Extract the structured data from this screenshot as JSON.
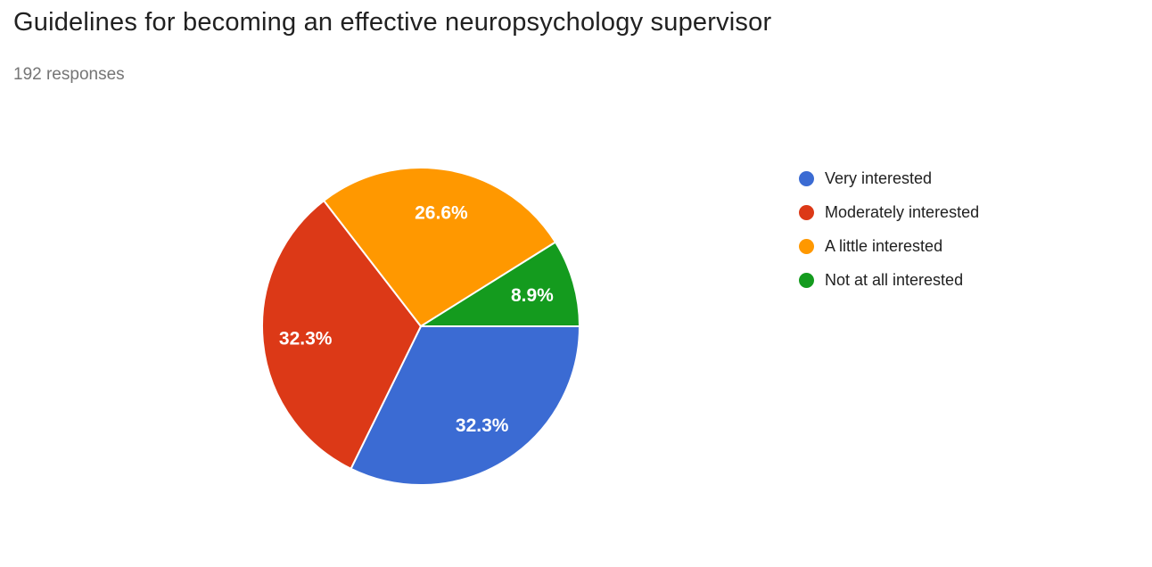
{
  "header": {
    "title": "Guidelines for becoming an effective neuropsychology supervisor",
    "responses_count": "192 responses"
  },
  "chart_data": {
    "type": "pie",
    "title": "Guidelines for becoming an effective neuropsychology supervisor",
    "subtitle": "192 responses",
    "total_responses": 192,
    "legend_position": "right",
    "start_angle_deg": 0,
    "direction": "clockwise",
    "label_color": "#ffffff",
    "slice_border_color": "#ffffff",
    "slices": [
      {
        "label": "Very interested",
        "percent": 32.3,
        "display": "32.3%",
        "color": "#3B6BD3"
      },
      {
        "label": "Moderately interested",
        "percent": 32.3,
        "display": "32.3%",
        "color": "#DC3917"
      },
      {
        "label": "A little interested",
        "percent": 26.6,
        "display": "26.6%",
        "color": "#FF9800"
      },
      {
        "label": "Not at all interested",
        "percent": 8.9,
        "display": "8.9%",
        "color": "#149B1E"
      }
    ]
  }
}
